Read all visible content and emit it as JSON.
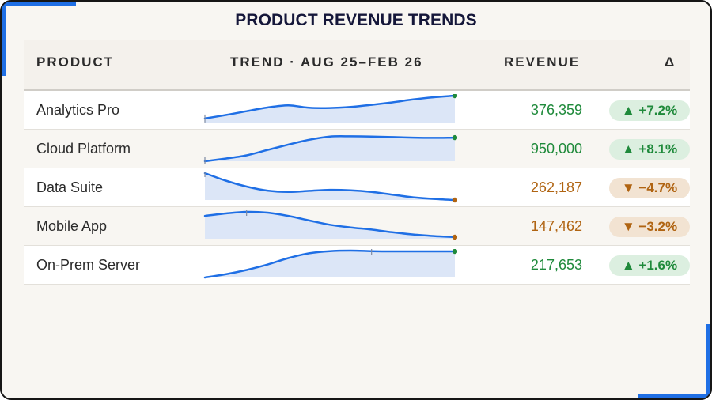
{
  "title": "PRODUCT REVENUE TRENDS",
  "columns": {
    "product": "PRODUCT",
    "trend": "TREND · AUG 25–FEB 26",
    "revenue": "REVENUE",
    "delta": "Δ"
  },
  "colors": {
    "line": "#1f6fe5",
    "area": "#dce6f7",
    "up_text": "#1f8a3b",
    "up_badge_bg": "#dcefe0",
    "down_text": "#b06412",
    "down_badge_bg": "#f2e3d2",
    "end_up": "#1f8a3b",
    "end_down": "#b06412"
  },
  "rows": [
    {
      "product": "Analytics Pro",
      "revenue": "376,359",
      "delta": "▲ +7.2%",
      "direction": "up",
      "trend": [
        0.15,
        0.28,
        0.42,
        0.56,
        0.64,
        0.55,
        0.54,
        0.58,
        0.66,
        0.75,
        0.86,
        0.94,
        1.0
      ],
      "marker_index": 0
    },
    {
      "product": "Cloud Platform",
      "revenue": "950,000",
      "delta": "▲ +8.1%",
      "direction": "up",
      "trend": [
        0.0,
        0.1,
        0.22,
        0.42,
        0.62,
        0.8,
        0.92,
        0.93,
        0.92,
        0.9,
        0.88,
        0.87,
        0.88
      ],
      "marker_index": 0
    },
    {
      "product": "Data Suite",
      "revenue": "262,187",
      "delta": "▼ −4.7%",
      "direction": "down",
      "trend": [
        1.0,
        0.72,
        0.5,
        0.35,
        0.3,
        0.34,
        0.38,
        0.36,
        0.3,
        0.2,
        0.1,
        0.04,
        0.0
      ],
      "marker_index": 0
    },
    {
      "product": "Mobile App",
      "revenue": "147,462",
      "delta": "▼ −3.2%",
      "direction": "down",
      "trend": [
        0.85,
        0.94,
        1.0,
        0.97,
        0.85,
        0.68,
        0.52,
        0.42,
        0.34,
        0.24,
        0.16,
        0.1,
        0.06
      ],
      "marker_index": 2
    },
    {
      "product": "On-Prem Server",
      "revenue": "217,653",
      "delta": "▲ +1.6%",
      "direction": "up",
      "trend": [
        0.0,
        0.12,
        0.28,
        0.48,
        0.72,
        0.9,
        0.98,
        1.0,
        0.98,
        0.97,
        0.97,
        0.97,
        0.97
      ],
      "marker_index": 8
    }
  ]
}
